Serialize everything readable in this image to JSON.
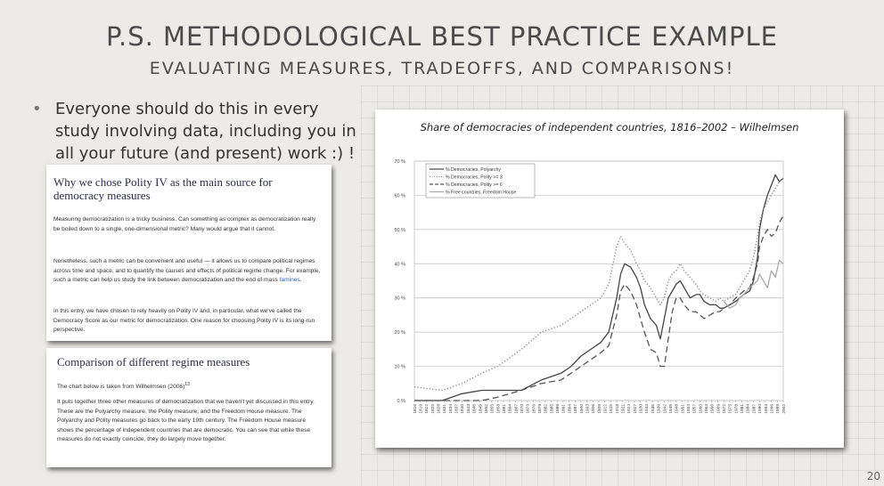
{
  "slide": {
    "title": "P.S. METHODOLOGICAL BEST PRACTICE EXAMPLE",
    "subtitle": "EVALUATING MEASURES, TRADEOFFS, AND COMPARISONS!",
    "bullet": "Everyone should do this in every study involving data, including you in all your future (and present) work :) !",
    "page_number": "20"
  },
  "card1": {
    "heading": "Why we chose Polity IV as the main source for democracy measures",
    "p1": "Measuring democratization is a tricky business. Can something as complex as democratization really be boiled down to a single, one-dimensional metric? Many would argue that it cannot.",
    "p2_before": "Nonetheless, such a metric can be convenient and useful — it allows us to compare political regimes across time and space, and to quantify the causes and effects of political regime change. For example, such a metric can help us study the link between democratization and the end of mass ",
    "p2_link": "famines",
    "p2_after": ".",
    "p3": "In this entry, we have chosen to rely heavily on Polity IV and, in particular, what we've called the Democracy Score as our metric for democratization. One reason for choosing Polity IV is its long-run perspective."
  },
  "card2": {
    "heading": "Comparison of different regime measures",
    "p1": "The chart below is taken from Wilhelmsen (2006)",
    "p1_sup": "13",
    "p2": "It puts together three other measures of democratization that we haven't yet discussed in this entry. These are the Polyarchy measure, the Polity measure, and the Freedom House measure. The Polyarchy and Polity measures go back to the early 19th century. The Freedom House measure shows the percentage of independent countries that are democratic. You can see that while these measures do not exactly coincide, they do largely move together."
  },
  "chart_data": {
    "type": "line",
    "title": "Share of democracies of independent countries, 1816–2002 – Wilhelmsen",
    "xlim": [
      1816,
      2002
    ],
    "ylim": [
      0,
      70
    ],
    "y_ticks": [
      "0 %",
      "10 %",
      "20 %",
      "30 %",
      "40 %",
      "50 %",
      "60 %",
      "70 %"
    ],
    "x_ticks": [
      "1816",
      "1819",
      "1822",
      "1825",
      "1828",
      "1831",
      "1834",
      "1837",
      "1840",
      "1843",
      "1846",
      "1849",
      "1852",
      "1855",
      "1858",
      "1861",
      "1864",
      "1867",
      "1870",
      "1873",
      "1876",
      "1879",
      "1882",
      "1885",
      "1888",
      "1891",
      "1894",
      "1897",
      "1900",
      "1903",
      "1906",
      "1909",
      "1912",
      "1915",
      "1918",
      "1921",
      "1924",
      "1927",
      "1930",
      "1933",
      "1936",
      "1939",
      "1942",
      "1945",
      "1948",
      "1951",
      "1954",
      "1957",
      "1960",
      "1963",
      "1966",
      "1969",
      "1972",
      "1975",
      "1978",
      "1981",
      "1984",
      "1987",
      "1990",
      "1993",
      "1996",
      "1999",
      "2002"
    ],
    "grid": true,
    "legend_position": "top-left",
    "series": [
      {
        "name": "% Democracies, Polyarchy",
        "style": "solid",
        "color": "#444444",
        "x": [
          1816,
          1830,
          1840,
          1850,
          1858,
          1870,
          1880,
          1890,
          1895,
          1900,
          1905,
          1910,
          1914,
          1918,
          1920,
          1922,
          1925,
          1928,
          1930,
          1932,
          1935,
          1938,
          1940,
          1942,
          1944,
          1946,
          1948,
          1950,
          1952,
          1955,
          1958,
          1960,
          1962,
          1965,
          1968,
          1970,
          1972,
          1975,
          1978,
          1980,
          1982,
          1985,
          1987,
          1989,
          1990,
          1992,
          1994,
          1996,
          1998,
          2000,
          2002
        ],
        "y": [
          0,
          0,
          2,
          3,
          3,
          3,
          6,
          8,
          10,
          13,
          15,
          17,
          20,
          30,
          37,
          40,
          39,
          36,
          33,
          28,
          24,
          22,
          18,
          24,
          30,
          32,
          34,
          35,
          33,
          30,
          31,
          31,
          29,
          28,
          28,
          27,
          27,
          28,
          29,
          30,
          31,
          32,
          35,
          42,
          50,
          56,
          60,
          63,
          66,
          64,
          65
        ]
      },
      {
        "name": "% Democracies, Polity >= 3",
        "style": "dotted",
        "color": "#888888",
        "x": [
          1816,
          1830,
          1840,
          1850,
          1858,
          1870,
          1880,
          1890,
          1895,
          1900,
          1905,
          1910,
          1914,
          1918,
          1920,
          1922,
          1925,
          1928,
          1930,
          1932,
          1935,
          1938,
          1940,
          1942,
          1944,
          1946,
          1948,
          1950,
          1952,
          1955,
          1958,
          1960,
          1962,
          1965,
          1968,
          1970,
          1972,
          1975,
          1978,
          1980,
          1982,
          1985,
          1987,
          1989,
          1990,
          1992,
          1994,
          1996,
          1998,
          2000,
          2002
        ],
        "y": [
          4,
          3,
          5,
          8,
          10,
          15,
          20,
          22,
          24,
          26,
          28,
          30,
          34,
          45,
          48,
          46,
          44,
          40,
          38,
          35,
          33,
          30,
          28,
          30,
          35,
          37,
          38,
          40,
          38,
          36,
          34,
          32,
          31,
          30,
          29,
          30,
          29,
          30,
          31,
          33,
          35,
          38,
          42,
          48,
          52,
          56,
          58,
          60,
          62,
          64,
          65
        ]
      },
      {
        "name": "% Democracies, Polity >= 6",
        "style": "dashed",
        "color": "#555555",
        "x": [
          1816,
          1830,
          1840,
          1850,
          1858,
          1870,
          1880,
          1890,
          1895,
          1900,
          1905,
          1910,
          1914,
          1918,
          1920,
          1922,
          1925,
          1928,
          1930,
          1932,
          1935,
          1938,
          1940,
          1942,
          1944,
          1946,
          1948,
          1950,
          1952,
          1955,
          1958,
          1960,
          1962,
          1965,
          1968,
          1970,
          1972,
          1975,
          1978,
          1980,
          1982,
          1985,
          1987,
          1989,
          1990,
          1992,
          1994,
          1996,
          1998,
          2000,
          2002
        ],
        "y": [
          0,
          0,
          0,
          0,
          1,
          3,
          5,
          6,
          8,
          10,
          12,
          14,
          16,
          25,
          32,
          34,
          32,
          28,
          24,
          20,
          15,
          14,
          10,
          10,
          18,
          26,
          30,
          30,
          28,
          26,
          26,
          25,
          24,
          25,
          26,
          26,
          27,
          28,
          30,
          31,
          32,
          33,
          36,
          40,
          45,
          48,
          50,
          48,
          49,
          52,
          54
        ]
      },
      {
        "name": "% Free countries, Freedom House",
        "style": "solid",
        "color": "#aaaaaa",
        "x": [
          1972,
          1975,
          1978,
          1980,
          1982,
          1985,
          1987,
          1989,
          1990,
          1992,
          1994,
          1996,
          1998,
          2000,
          2002
        ],
        "y": [
          29,
          27,
          28,
          30,
          31,
          33,
          34,
          35,
          37,
          35,
          33,
          38,
          36,
          41,
          40
        ]
      }
    ]
  }
}
